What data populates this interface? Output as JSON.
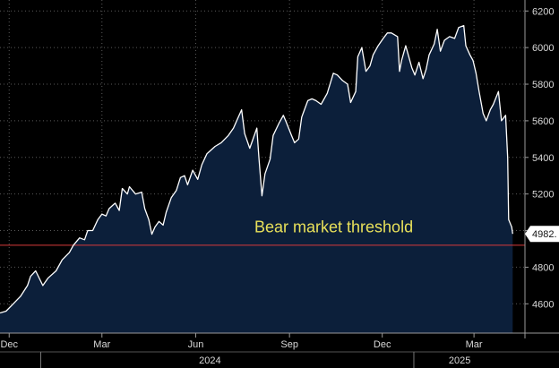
{
  "chart_data": {
    "type": "area",
    "title": "",
    "xlabel": "",
    "ylabel": "",
    "ylim": [
      4440,
      6260
    ],
    "y_ticks": [
      4600,
      4800,
      5000,
      5200,
      5400,
      5600,
      5800,
      6000,
      6200
    ],
    "x_tick_labels": [
      "Dec",
      "Mar",
      "Jun",
      "Sep",
      "Dec",
      "Mar"
    ],
    "x_tick_dates": [
      "2023-12-01",
      "2024-03-01",
      "2024-06-01",
      "2024-09-01",
      "2024-12-01",
      "2025-03-01"
    ],
    "year_labels": [
      {
        "label": "2024",
        "date": "2024-06-15"
      },
      {
        "label": "2025",
        "date": "2025-02-15"
      }
    ],
    "xlim": [
      "2023-11-22",
      "2025-04-20"
    ],
    "grid": true,
    "threshold": {
      "value": 4920,
      "label": "Bear market threshold",
      "color": "#d83a3a"
    },
    "last_value_label": "4982.",
    "colors": {
      "line": "#ffffff",
      "fill": "#0c1f3a",
      "background": "#000000",
      "tag": "#ffffff"
    },
    "series": [
      {
        "x": [
          "2023-11-22",
          "2023-11-28",
          "2023-12-05",
          "2023-12-12",
          "2023-12-19",
          "2023-12-22",
          "2023-12-27",
          "2024-01-03",
          "2024-01-08",
          "2024-01-16",
          "2024-01-22",
          "2024-01-29",
          "2024-02-02",
          "2024-02-08",
          "2024-02-13",
          "2024-02-16",
          "2024-02-21",
          "2024-02-26",
          "2024-03-01",
          "2024-03-05",
          "2024-03-08",
          "2024-03-12",
          "2024-03-14",
          "2024-03-18",
          "2024-03-21",
          "2024-03-26",
          "2024-03-28",
          "2024-04-03",
          "2024-04-09",
          "2024-04-12",
          "2024-04-16",
          "2024-04-19",
          "2024-04-22",
          "2024-04-26",
          "2024-04-30",
          "2024-05-03",
          "2024-05-08",
          "2024-05-13",
          "2024-05-17",
          "2024-05-21",
          "2024-05-24",
          "2024-05-29",
          "2024-06-03",
          "2024-06-07",
          "2024-06-12",
          "2024-06-14",
          "2024-06-20",
          "2024-06-26",
          "2024-07-03",
          "2024-07-08",
          "2024-07-12",
          "2024-07-16",
          "2024-07-19",
          "2024-07-24",
          "2024-07-31",
          "2024-08-02",
          "2024-08-05",
          "2024-08-08",
          "2024-08-13",
          "2024-08-16",
          "2024-08-22",
          "2024-08-26",
          "2024-08-29",
          "2024-09-03",
          "2024-09-06",
          "2024-09-10",
          "2024-09-13",
          "2024-09-19",
          "2024-09-23",
          "2024-09-27",
          "2024-10-02",
          "2024-10-08",
          "2024-10-14",
          "2024-10-18",
          "2024-10-23",
          "2024-10-28",
          "2024-10-31",
          "2024-11-05",
          "2024-11-07",
          "2024-11-11",
          "2024-11-15",
          "2024-11-19",
          "2024-11-22",
          "2024-11-27",
          "2024-12-02",
          "2024-12-06",
          "2024-12-10",
          "2024-12-16",
          "2024-12-18",
          "2024-12-20",
          "2024-12-24",
          "2024-12-30",
          "2025-01-02",
          "2025-01-06",
          "2025-01-10",
          "2025-01-13",
          "2025-01-16",
          "2025-01-21",
          "2025-01-24",
          "2025-01-27",
          "2025-01-31",
          "2025-02-05",
          "2025-02-10",
          "2025-02-14",
          "2025-02-19",
          "2025-02-21",
          "2025-02-25",
          "2025-02-28",
          "2025-03-03",
          "2025-03-06",
          "2025-03-10",
          "2025-03-13",
          "2025-03-17",
          "2025-03-20",
          "2025-03-25",
          "2025-03-28",
          "2025-04-01",
          "2025-04-03",
          "2025-04-04",
          "2025-04-07",
          "2025-04-08"
        ],
        "y": [
          4550,
          4560,
          4600,
          4640,
          4700,
          4750,
          4780,
          4700,
          4740,
          4780,
          4840,
          4880,
          4920,
          4960,
          4950,
          5000,
          5000,
          5060,
          5090,
          5080,
          5120,
          5140,
          5150,
          5110,
          5230,
          5200,
          5240,
          5200,
          5210,
          5120,
          5060,
          4980,
          5020,
          5050,
          5030,
          5100,
          5180,
          5220,
          5290,
          5300,
          5250,
          5330,
          5280,
          5360,
          5420,
          5430,
          5460,
          5480,
          5520,
          5560,
          5610,
          5660,
          5530,
          5450,
          5560,
          5400,
          5190,
          5310,
          5390,
          5520,
          5590,
          5630,
          5590,
          5520,
          5480,
          5500,
          5620,
          5710,
          5720,
          5710,
          5690,
          5750,
          5860,
          5850,
          5820,
          5800,
          5700,
          5760,
          5950,
          6000,
          5870,
          5900,
          5960,
          6010,
          6050,
          6080,
          6080,
          6060,
          5870,
          5930,
          6010,
          5890,
          5850,
          5920,
          5830,
          5880,
          5960,
          6020,
          6100,
          5980,
          6040,
          6060,
          6050,
          6110,
          6120,
          6010,
          5960,
          5930,
          5860,
          5760,
          5640,
          5600,
          5660,
          5690,
          5760,
          5600,
          5630,
          5400,
          5060,
          5020,
          4982
        ]
      }
    ]
  }
}
